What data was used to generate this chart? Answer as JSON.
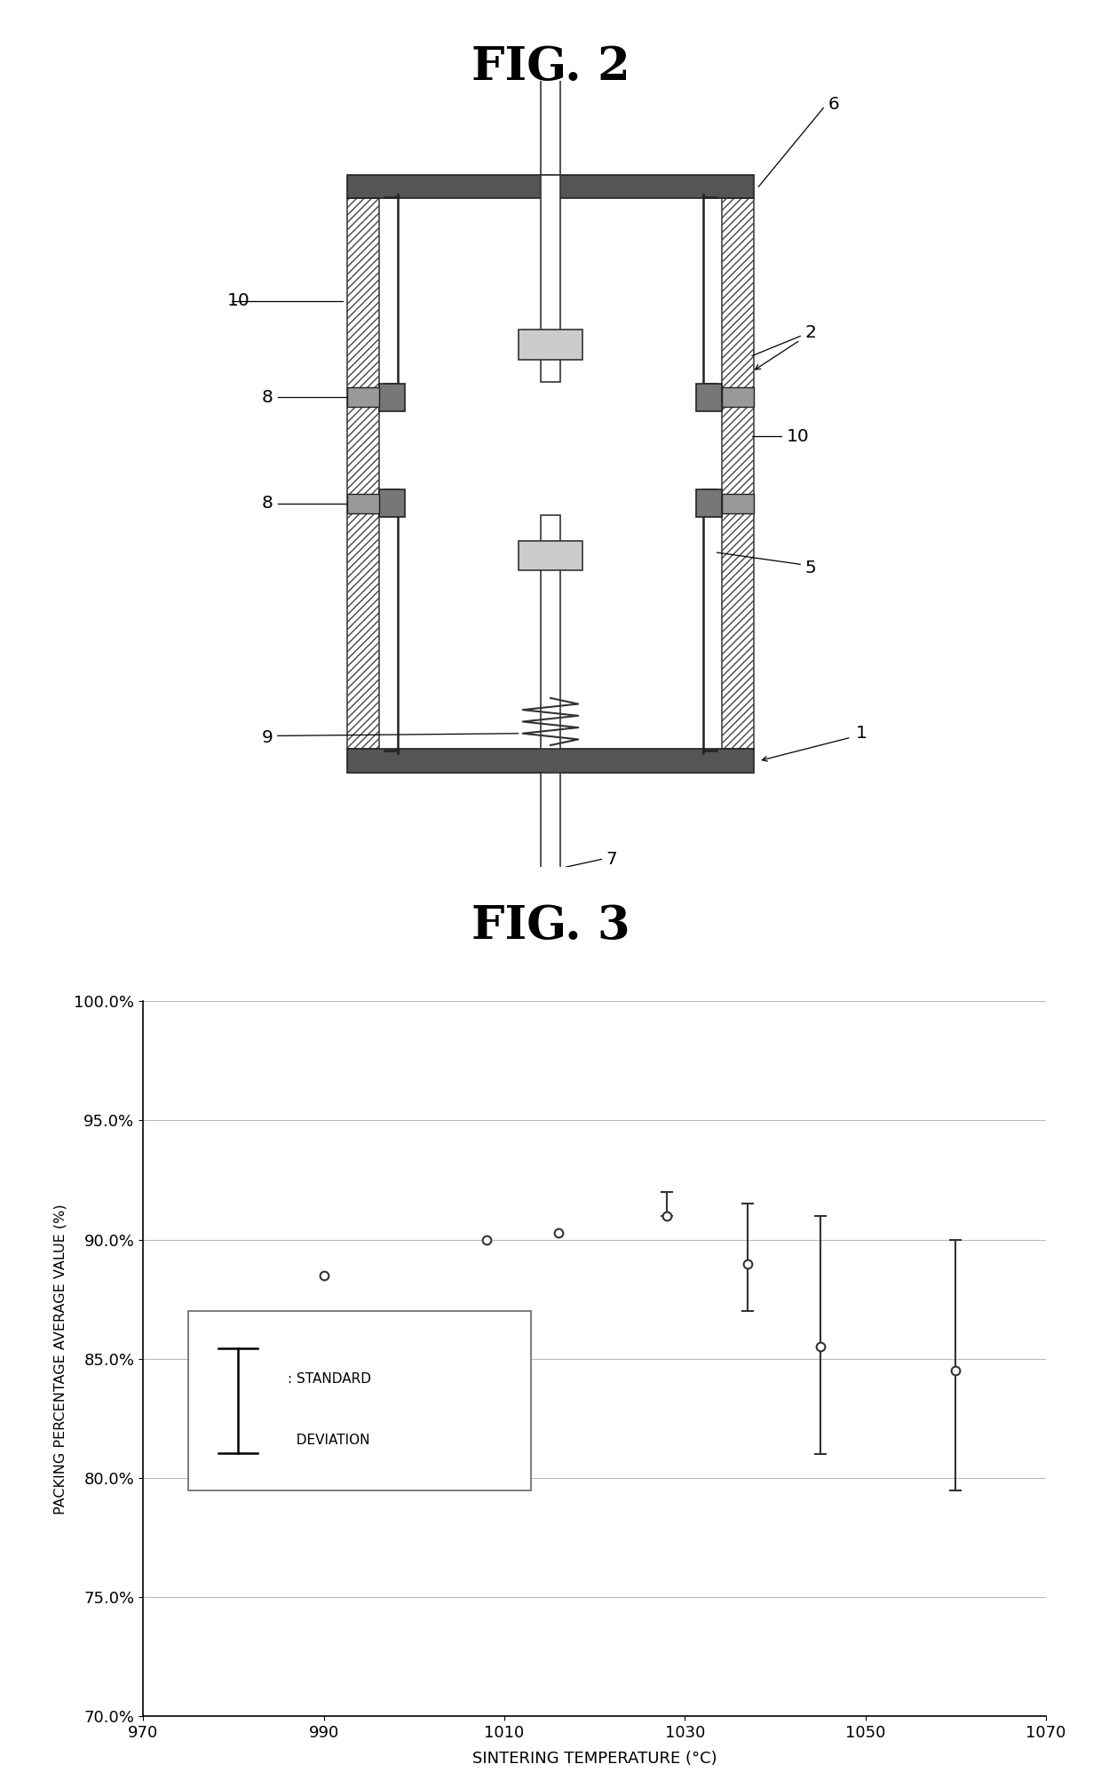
{
  "fig2_title": "FIG. 2",
  "fig3_title": "FIG. 3",
  "chart": {
    "xlabel": "SINTERING TEMPERATURE (°C)",
    "ylabel": "PACKING PERCENTAGE AVERAGE VALUE (%)",
    "xlim": [
      970,
      1070
    ],
    "ylim": [
      70.0,
      100.0
    ],
    "xticks": [
      970,
      990,
      1010,
      1030,
      1050,
      1070
    ],
    "yticks": [
      70.0,
      75.0,
      80.0,
      85.0,
      90.0,
      95.0,
      100.0
    ],
    "ytick_labels": [
      "70.0%",
      "75.0%",
      "80.0%",
      "85.0%",
      "90.0%",
      "95.0%",
      "100.0%"
    ],
    "xtick_labels": [
      "970",
      "990",
      "1010",
      "1030",
      "1050",
      "1070"
    ],
    "data_x": [
      990,
      1008,
      1016,
      1028,
      1037,
      1045,
      1060
    ],
    "data_y": [
      88.5,
      90.0,
      90.3,
      91.0,
      89.0,
      85.5,
      84.5
    ],
    "data_yerr_lo": [
      0.0,
      0.0,
      0.0,
      0.0,
      2.0,
      4.5,
      5.0
    ],
    "data_yerr_hi": [
      0.0,
      0.0,
      0.0,
      1.0,
      2.5,
      5.5,
      5.5
    ],
    "background_color": "#ffffff",
    "grid_color": "#bbbbbb",
    "marker_color": "#333333",
    "marker_face_color": "white",
    "marker_size": 7,
    "errorbar_color": "#333333"
  }
}
